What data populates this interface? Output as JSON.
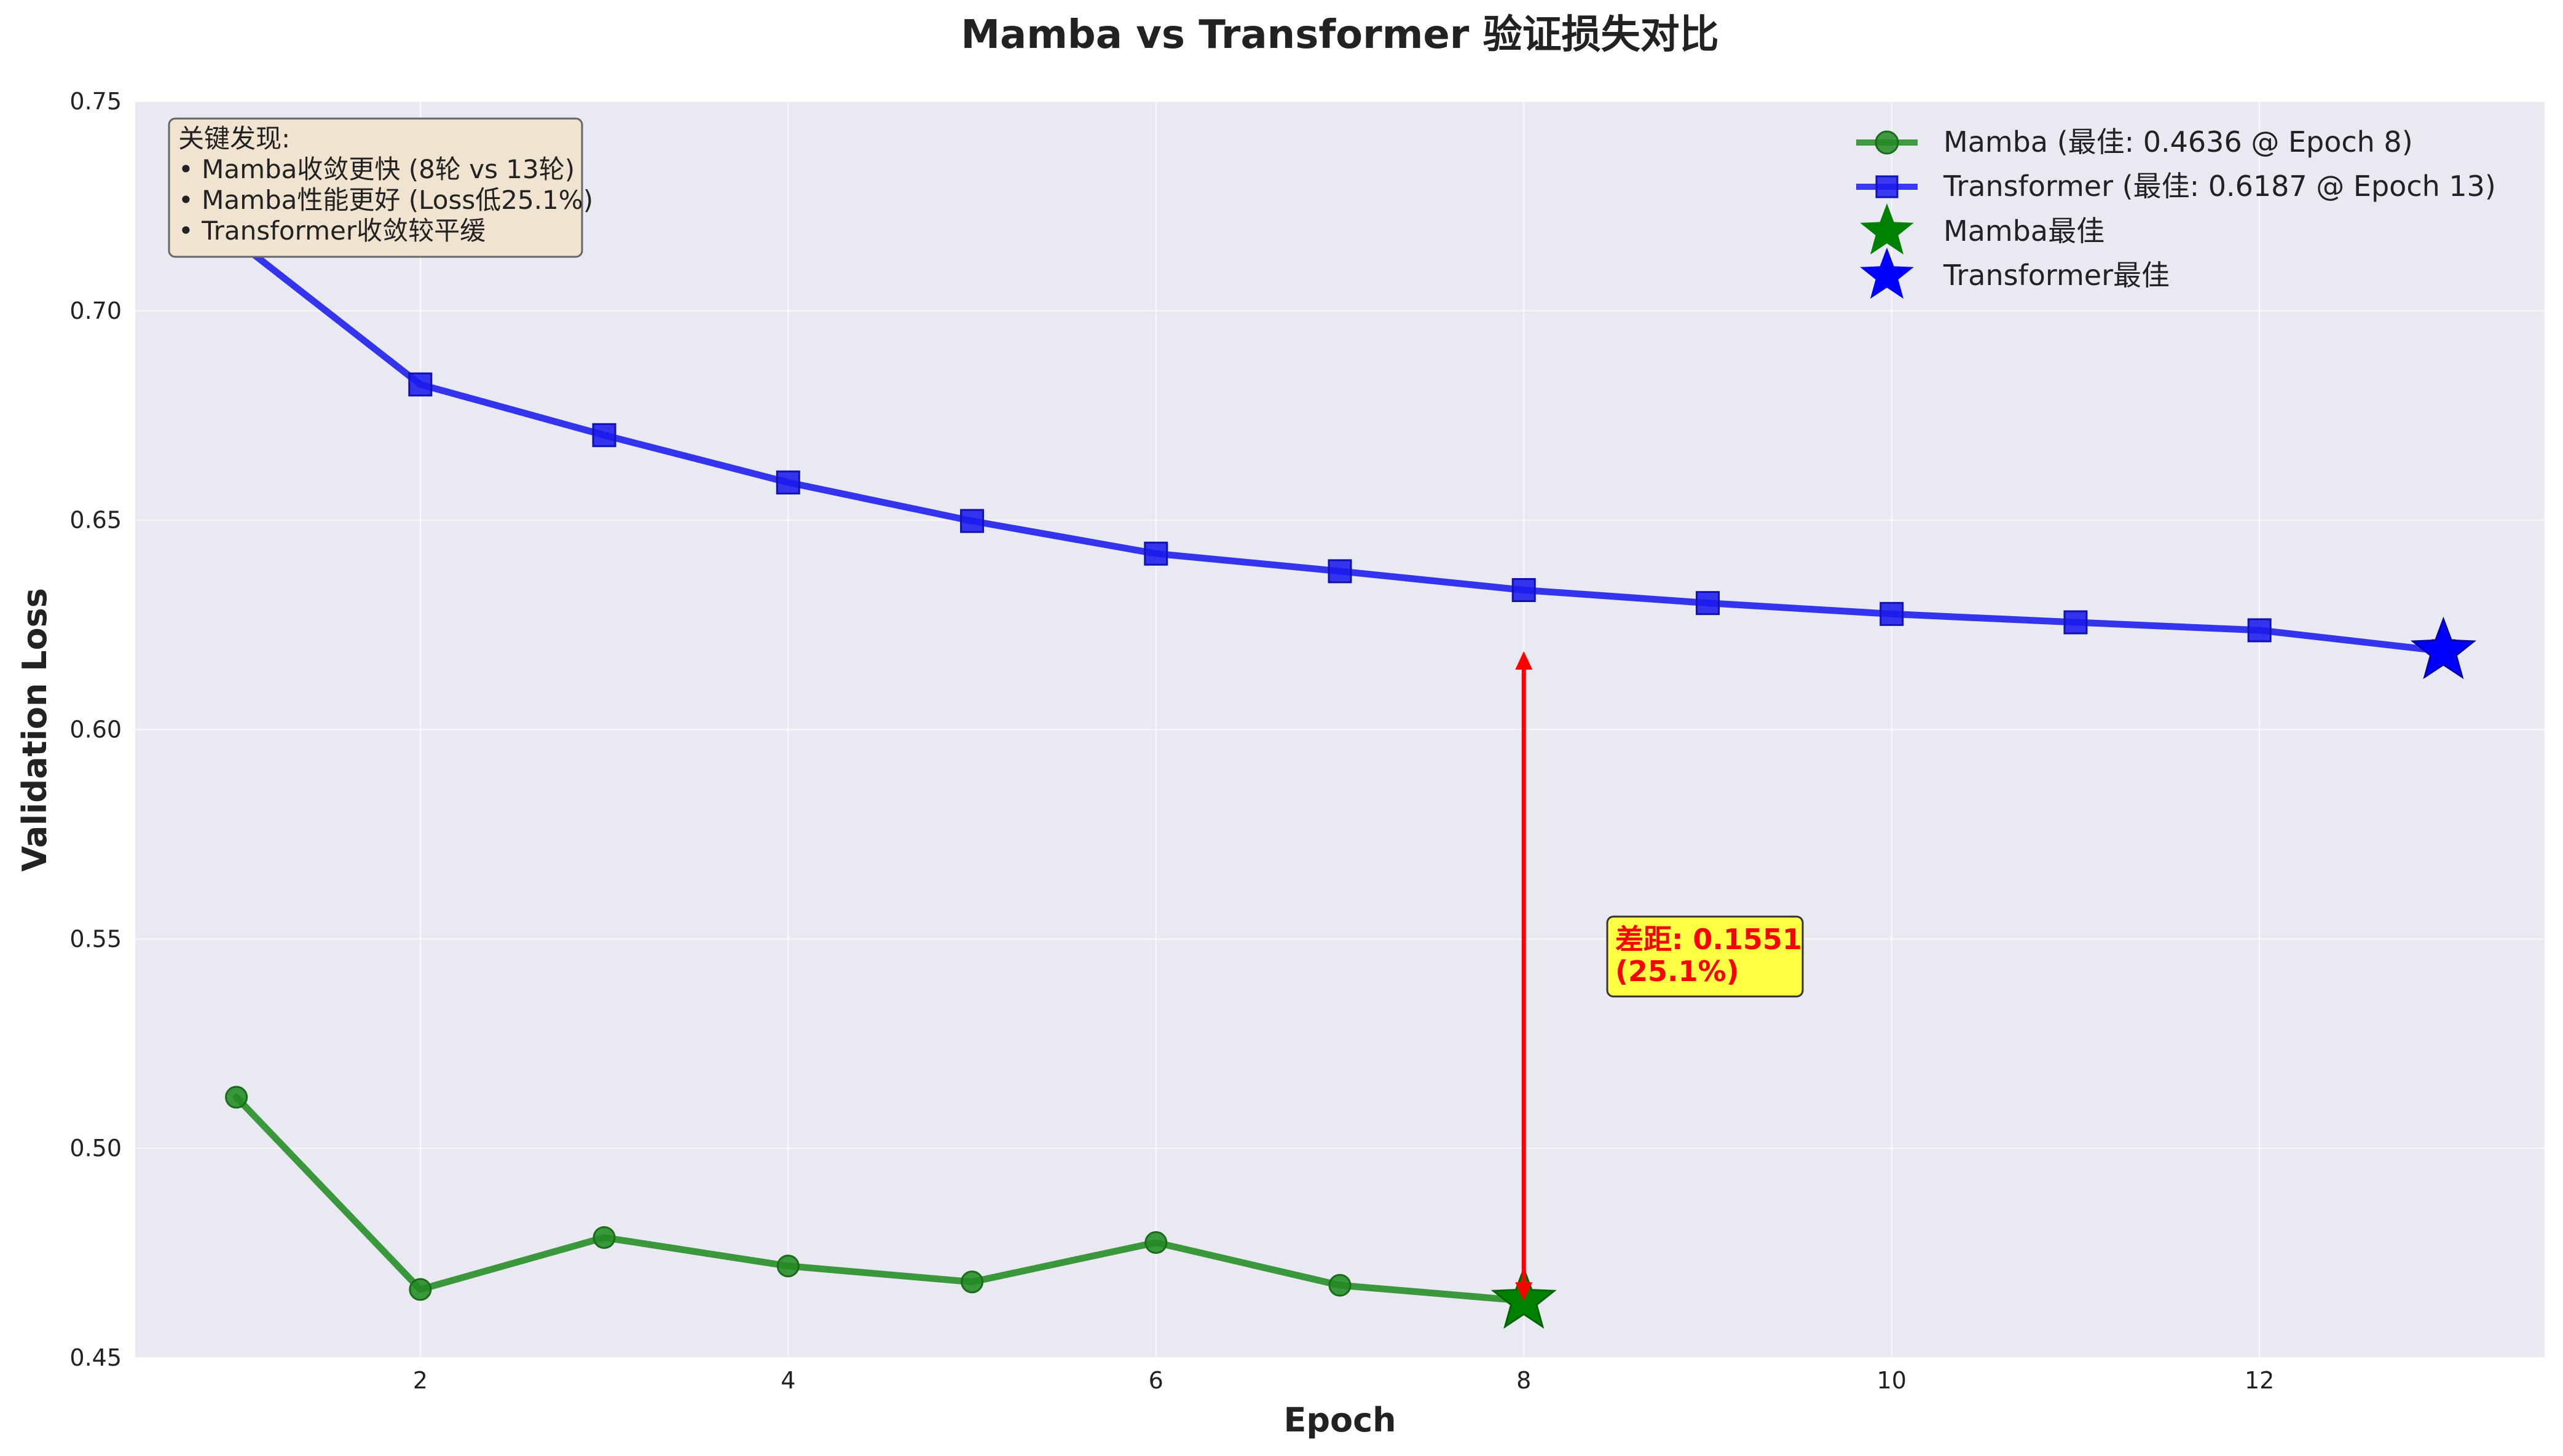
{
  "chart_data": {
    "type": "line",
    "title": "Mamba vs Transformer 验证损失对比",
    "xlabel": "Epoch",
    "ylabel": "Validation Loss",
    "xlim": [
      0.45,
      13.55
    ],
    "ylim": [
      0.45,
      0.75
    ],
    "xticks": [
      2,
      4,
      6,
      8,
      10,
      12
    ],
    "yticks": [
      0.45,
      0.5,
      0.55,
      0.6,
      0.65,
      0.7,
      0.75
    ],
    "grid": true,
    "legend_position": "top-right",
    "series": [
      {
        "name": "Mamba (最佳: 0.4636 @ Epoch 8)",
        "color": "#228b22",
        "marker": "circle",
        "x": [
          1,
          2,
          3,
          4,
          5,
          6,
          7,
          8
        ],
        "values": [
          0.5122,
          0.4663,
          0.4787,
          0.4719,
          0.4681,
          0.4775,
          0.4673,
          0.4636
        ]
      },
      {
        "name": "Transformer (最佳: 0.6187 @ Epoch 13)",
        "color": "#1a1aee",
        "marker": "square",
        "x": [
          1,
          2,
          3,
          4,
          5,
          6,
          7,
          8,
          9,
          10,
          11,
          12,
          13
        ],
        "values": [
          0.7167,
          0.6824,
          0.6703,
          0.659,
          0.6498,
          0.642,
          0.6378,
          0.6333,
          0.6302,
          0.6276,
          0.6256,
          0.6237,
          0.6187
        ]
      }
    ],
    "best_points": [
      {
        "name": "Mamba最佳",
        "x": 8,
        "y": 0.4636,
        "color": "#008000"
      },
      {
        "name": "Transformer最佳",
        "x": 13,
        "y": 0.6187,
        "color": "#0000ff"
      }
    ],
    "annotations": {
      "gap_arrow": {
        "x": 8,
        "y_from": 0.4636,
        "y_to": 0.6187,
        "color": "#ff0000"
      },
      "gap_label": {
        "line1": "差距: 0.1551",
        "line2": "(25.1%)",
        "x": 8.5,
        "y": 0.545
      },
      "info_box": {
        "lines": [
          "关键发现:",
          "• Mamba收敛更快 (8轮 vs 13轮)",
          "• Mamba性能更好 (Loss低25.1%)",
          "• Transformer收敛较平缓"
        ]
      }
    }
  }
}
